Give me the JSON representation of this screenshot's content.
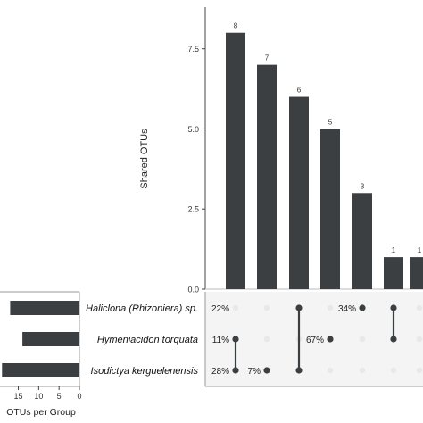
{
  "chart_data": [
    {
      "type": "bar",
      "ylabel": "Shared OTUs",
      "ylim": [
        0,
        8.8
      ],
      "yticks": [
        0.0,
        2.5,
        5.0,
        7.5
      ],
      "ytick_labels": [
        "0.0",
        "2.5",
        "5.0",
        "7.5"
      ],
      "values": [
        8,
        7,
        6,
        5,
        3,
        1,
        1
      ],
      "data_labels": [
        "8",
        "7",
        "6",
        "5",
        "3",
        "1",
        "1"
      ],
      "bar_color": "#3b3f42",
      "grid": true
    },
    {
      "type": "bar",
      "orientation": "horizontal",
      "xlabel": "OTUs per Group",
      "categories": [
        "Haliclona (Rhizoniera) sp.",
        "Hymeniacidon torquata",
        "Isodictya kerguelenensis"
      ],
      "values": [
        17,
        14,
        19
      ],
      "xticks": [
        15,
        10,
        5,
        0
      ],
      "xtick_labels": [
        "15",
        "10",
        "5",
        "0"
      ],
      "reversed_axis": true,
      "bar_color": "#3b3f42"
    },
    {
      "type": "table",
      "matrix_dot_color": "#3b3f42",
      "empty_dot_color": "#e8e8e8",
      "matrix_background": "#f4f4f4",
      "sets": [
        "Haliclona (Rhizoniera) sp.",
        "Hymeniacidon torquata",
        "Isodictya kerguelenensis"
      ],
      "intersections": [
        {
          "sets": [
            1,
            2
          ]
        },
        {
          "sets": [
            2
          ]
        },
        {
          "sets": [
            0,
            2
          ]
        },
        {
          "sets": [
            1
          ]
        },
        {
          "sets": [
            0
          ]
        },
        {
          "sets": [
            0,
            1
          ]
        },
        {
          "sets": []
        }
      ],
      "percent_labels": [
        {
          "row": 0,
          "col": 0,
          "text": "22%"
        },
        {
          "row": 1,
          "col": 0,
          "text": "11%"
        },
        {
          "row": 2,
          "col": 0,
          "text": "28%"
        },
        {
          "row": 2,
          "col": 1,
          "text": "7%"
        },
        {
          "row": 1,
          "col": 3,
          "text": "67%"
        },
        {
          "row": 0,
          "col": 4,
          "text": "34%"
        }
      ]
    }
  ]
}
